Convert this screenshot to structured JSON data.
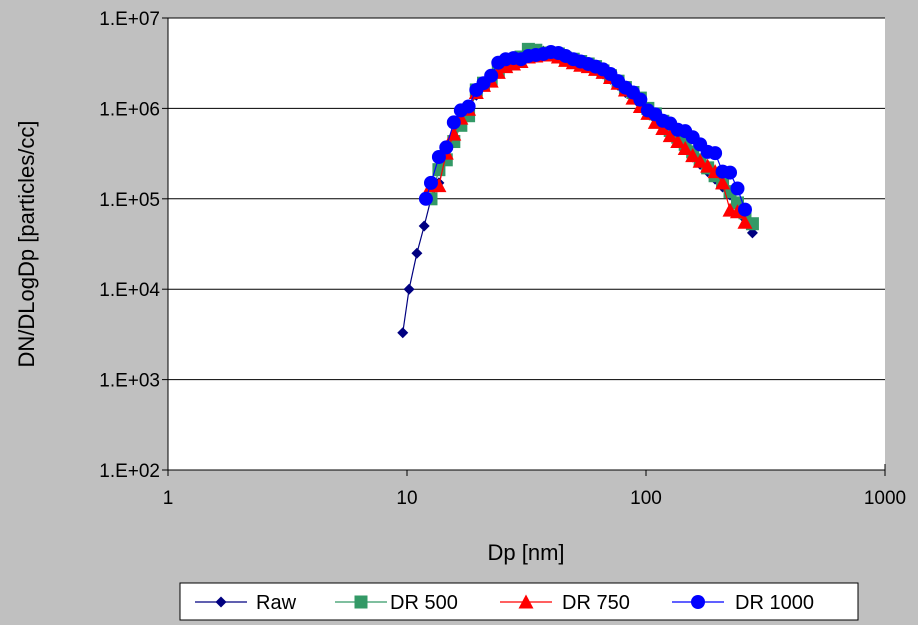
{
  "chart_data": {
    "type": "scatter",
    "title": "",
    "xlabel": "Dp [nm]",
    "ylabel": "DN/DLogDp [particles/cc]",
    "x_scale": "log",
    "y_scale": "log",
    "xlim": [
      1,
      1000
    ],
    "ylim": [
      100,
      10000000
    ],
    "x_ticks": [
      "1",
      "10",
      "100",
      "1000"
    ],
    "y_ticks": [
      "1.E+02",
      "1.E+03",
      "1.E+04",
      "1.E+05",
      "1.E+06",
      "1.E+07"
    ],
    "grid": "horizontal",
    "legend_position": "bottom",
    "colors": {
      "background": "#c0c0c0",
      "plot_area": "#ffffff"
    },
    "series": [
      {
        "name": "Raw",
        "marker": "diamond",
        "line": true,
        "color": "#000080",
        "x": [
          9.6,
          10.2,
          11.0,
          11.8,
          12.6,
          13.6,
          14.6,
          15.7,
          16.8,
          18.1,
          19.5,
          20.9,
          22.5,
          24.1,
          25.9,
          27.9,
          30.0,
          32.2,
          34.6,
          37.2,
          40.0,
          43.0,
          46.1,
          49.6,
          53.3,
          57.3,
          61.5,
          66.1,
          71.0,
          76.4,
          82.0,
          88.2,
          94.7,
          101.8,
          109.4,
          117.6,
          126.3,
          135.8,
          145.9,
          156.8,
          168.5,
          181.1,
          194.6,
          209.1,
          224.7,
          241.4,
          259.5,
          278.8
        ],
        "y": [
          3300,
          10000,
          25000,
          50000,
          100000,
          150000,
          280000,
          470000,
          700000,
          1000000,
          1400000,
          1800000,
          2200000,
          2700000,
          3100000,
          3500000,
          3800000,
          4000000,
          4200000,
          4300000,
          4300000,
          4100000,
          3900000,
          3600000,
          3300000,
          3000000,
          2700000,
          2400000,
          2100000,
          1800000,
          1500000,
          1300000,
          1100000,
          920000,
          760000,
          630000,
          520000,
          430000,
          350000,
          290000,
          240000,
          200000,
          165000,
          135000,
          110000,
          85000,
          60000,
          42000
        ]
      },
      {
        "name": "DR 500",
        "marker": "square",
        "line": true,
        "color": "#339966",
        "x": [
          12.6,
          13.6,
          14.6,
          15.7,
          16.8,
          18.1,
          19.5,
          20.9,
          22.5,
          24.1,
          25.9,
          27.9,
          30.0,
          32.2,
          34.6,
          37.2,
          40.0,
          43.0,
          46.1,
          49.6,
          53.3,
          57.3,
          61.5,
          66.1,
          71.0,
          76.4,
          82.0,
          88.2,
          94.7,
          101.8,
          109.4,
          117.6,
          126.3,
          135.8,
          145.9,
          156.8,
          168.5,
          181.1,
          194.6,
          209.1,
          224.7,
          241.4,
          259.5,
          278.8
        ],
        "y": [
          100000,
          210000,
          270000,
          430000,
          650000,
          830000,
          1600000,
          1900000,
          2100000,
          2600000,
          3000000,
          3300000,
          3700000,
          4500000,
          4400000,
          4100000,
          4100000,
          4000000,
          3600000,
          3500000,
          3300000,
          3100000,
          2900000,
          2600000,
          2300000,
          2000000,
          1700000,
          1500000,
          1300000,
          1000000,
          870000,
          720000,
          570000,
          480000,
          400000,
          330000,
          270000,
          220000,
          180000,
          150000,
          120000,
          90000,
          70000,
          53000
        ]
      },
      {
        "name": "DR 750",
        "marker": "triangle",
        "line": true,
        "color": "#ff0000",
        "x": [
          12.6,
          13.6,
          14.6,
          15.7,
          16.8,
          18.1,
          19.5,
          20.9,
          22.5,
          24.1,
          25.9,
          27.9,
          30.0,
          32.2,
          34.6,
          37.2,
          40.0,
          43.0,
          46.1,
          49.6,
          53.3,
          57.3,
          61.5,
          66.1,
          71.0,
          76.4,
          82.0,
          88.2,
          94.7,
          101.8,
          109.4,
          117.6,
          126.3,
          135.8,
          145.9,
          156.8,
          168.5,
          181.1,
          194.6,
          209.1,
          224.7,
          241.4,
          259.5
        ],
        "y": [
          140000,
          140000,
          320000,
          520000,
          780000,
          980000,
          1500000,
          1800000,
          2000000,
          2500000,
          2900000,
          3100000,
          3300000,
          3700000,
          3800000,
          3900000,
          3900000,
          3700000,
          3400000,
          3200000,
          3000000,
          2900000,
          2700000,
          2500000,
          2200000,
          1900000,
          1600000,
          1300000,
          1050000,
          880000,
          700000,
          600000,
          500000,
          430000,
          360000,
          300000,
          260000,
          230000,
          200000,
          150000,
          75000,
          72000,
          55000
        ]
      },
      {
        "name": "DR 1000",
        "marker": "circle",
        "line": true,
        "color": "#0000ff",
        "x": [
          12.0,
          12.6,
          13.6,
          14.6,
          15.7,
          16.8,
          18.1,
          19.5,
          20.9,
          22.5,
          24.1,
          25.9,
          27.9,
          30.0,
          32.2,
          34.6,
          37.2,
          40.0,
          43.0,
          46.1,
          49.6,
          53.3,
          57.3,
          61.5,
          66.1,
          71.0,
          76.4,
          82.0,
          88.2,
          94.7,
          101.8,
          109.4,
          117.6,
          126.3,
          135.8,
          145.9,
          156.8,
          168.5,
          181.1,
          194.6,
          209.1,
          224.7,
          241.4,
          259.5
        ],
        "y": [
          100000,
          150000,
          290000,
          370000,
          700000,
          950000,
          1050000,
          1600000,
          1900000,
          2300000,
          3200000,
          3500000,
          3600000,
          3500000,
          3800000,
          3900000,
          4000000,
          4200000,
          4100000,
          3800000,
          3500000,
          3300000,
          3100000,
          2900000,
          2700000,
          2400000,
          2000000,
          1700000,
          1500000,
          1250000,
          950000,
          860000,
          730000,
          680000,
          580000,
          560000,
          480000,
          400000,
          330000,
          320000,
          200000,
          195000,
          130000,
          76000
        ]
      }
    ]
  }
}
